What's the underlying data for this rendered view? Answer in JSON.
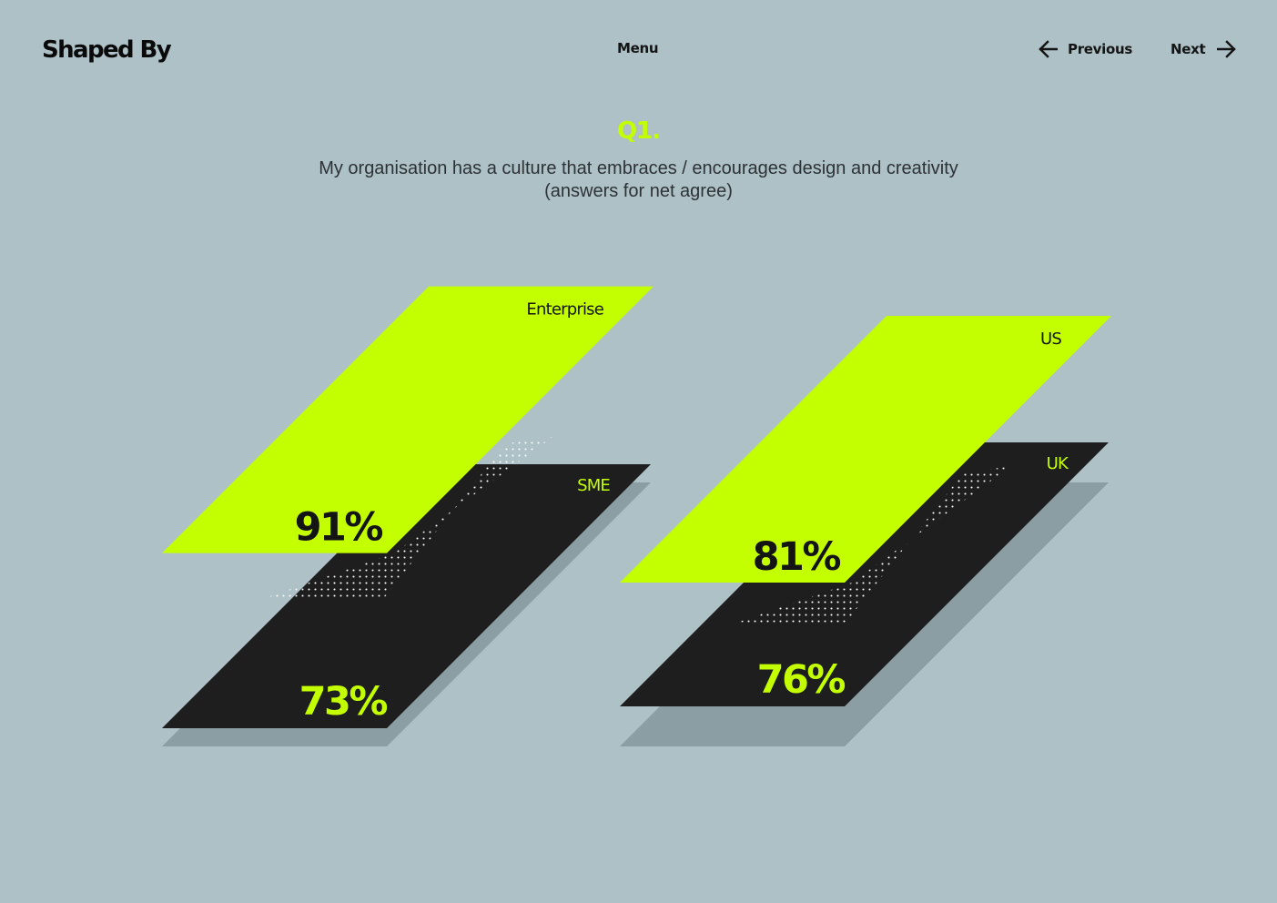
{
  "header": {
    "logo": "Shaped By",
    "menu_label": "Menu",
    "prev_label": "Previous",
    "next_label": "Next"
  },
  "question": {
    "number": "Q1.",
    "text_line1": "My organisation has a culture that embraces / encourages design and creativity",
    "text_line2": "(answers for net agree)"
  },
  "colors": {
    "background": "#adc1c7",
    "accent": "#c4ff00",
    "dark_plane": "#1e1e1e",
    "shadow": "#8a9ea3",
    "text_dark": "#141414"
  },
  "icons": {
    "prev": "arrow-left-icon",
    "next": "arrow-right-icon"
  },
  "chart_data": [
    {
      "type": "bar",
      "categories": [
        "Enterprise",
        "SME"
      ],
      "values": [
        91,
        73
      ],
      "value_labels": [
        "91%",
        "73%"
      ],
      "unit": "%"
    },
    {
      "type": "bar",
      "categories": [
        "US",
        "UK"
      ],
      "values": [
        81,
        76
      ],
      "value_labels": [
        "81%",
        "76%"
      ],
      "unit": "%"
    }
  ]
}
